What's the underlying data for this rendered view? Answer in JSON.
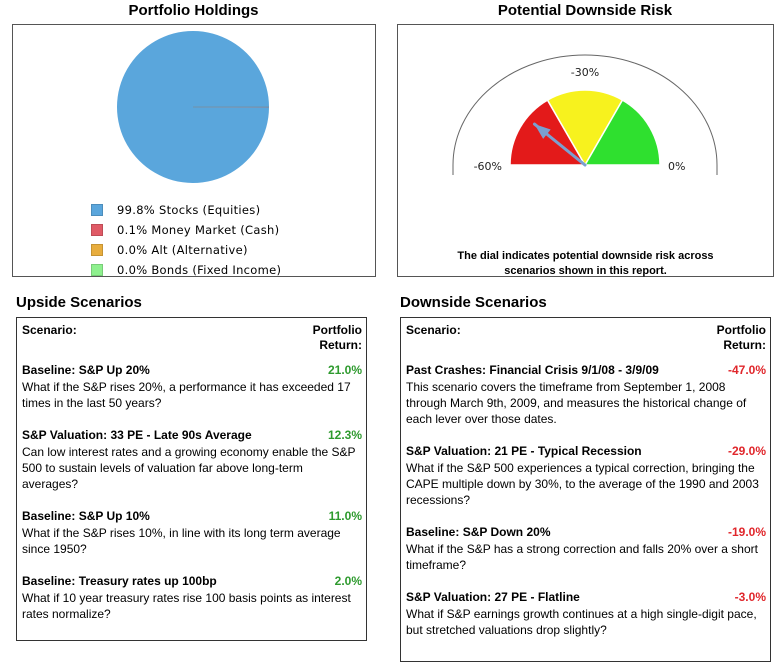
{
  "holdings": {
    "title": "Portfolio Holdings",
    "legend": [
      {
        "label": "99.8% Stocks (Equities)",
        "color": "#5aa6dc"
      },
      {
        "label": "0.1% Money Market (Cash)",
        "color": "#e05a66"
      },
      {
        "label": "0.0% Alt (Alternative)",
        "color": "#e8ad3d"
      },
      {
        "label": "0.0% Bonds (Fixed Income)",
        "color": "#8ef08e"
      }
    ]
  },
  "risk": {
    "title": "Potential Downside Risk",
    "note_line1": "The dial indicates potential downside risk across",
    "note_line2": "scenarios shown in this report."
  },
  "upside": {
    "title": "Upside Scenarios",
    "header_left": "Scenario:",
    "header_right_1": "Portfolio",
    "header_right_2": "Return:",
    "items": [
      {
        "name": "Baseline:  S&P Up 20%",
        "value": "21.0%",
        "desc": "What if the S&P rises 20%, a performance it has exceeded 17 times in the last 50 years?"
      },
      {
        "name": "S&P Valuation: 33 PE - Late 90s Average",
        "value": "12.3%",
        "desc": "Can low interest rates and a growing economy enable the S&P 500 to sustain levels of valuation far above long-term averages?"
      },
      {
        "name": "Baseline:  S&P Up 10%",
        "value": "11.0%",
        "desc": "What if the S&P rises 10%, in line with its long term average since 1950?"
      },
      {
        "name": "Baseline: Treasury rates up 100bp",
        "value": "2.0%",
        "desc": "What if 10 year treasury rates rise 100 basis points as interest rates normalize?"
      }
    ]
  },
  "downside": {
    "title": "Downside Scenarios",
    "header_left": "Scenario:",
    "header_right_1": "Portfolio",
    "header_right_2": "Return:",
    "items": [
      {
        "name": "Past Crashes: Financial Crisis 9/1/08 - 3/9/09",
        "value": "-47.0%",
        "desc": "This scenario covers the timeframe from September 1, 2008 through March 9th, 2009, and measures the historical change of each lever over those dates."
      },
      {
        "name": "S&P Valuation: 21 PE - Typical Recession",
        "value": "-29.0%",
        "desc": "What if the S&P 500 experiences a typical correction, bringing the CAPE multiple down by 30%, to the average of the 1990 and 2003 recessions?"
      },
      {
        "name": "Baseline: S&P Down 20%",
        "value": "-19.0%",
        "desc": "What if the S&P has a strong correction and falls 20% over a short timeframe?"
      },
      {
        "name": "S&P Valuation: 27 PE - Flatline",
        "value": "-3.0%",
        "desc": "What if S&P earnings growth continues at a high single-digit pace, but stretched valuations drop slightly?"
      }
    ]
  },
  "chart_data": [
    {
      "type": "pie",
      "title": "Portfolio Holdings",
      "categories": [
        "Stocks (Equities)",
        "Money Market (Cash)",
        "Alt (Alternative)",
        "Bonds (Fixed Income)"
      ],
      "values": [
        99.8,
        0.1,
        0.0,
        0.0
      ],
      "colors": [
        "#5aa6dc",
        "#e05a66",
        "#e8ad3d",
        "#8ef08e"
      ]
    },
    {
      "type": "gauge",
      "title": "Potential Downside Risk",
      "range": [
        -60,
        0
      ],
      "tick_labels": [
        "-60%",
        "-30%",
        "0%"
      ],
      "zones": [
        {
          "from": -60,
          "to": -40,
          "color": "#e31a1a"
        },
        {
          "from": -40,
          "to": -20,
          "color": "#f7f21e"
        },
        {
          "from": -20,
          "to": 0,
          "color": "#2fe02f"
        }
      ],
      "value": -47,
      "needle_color": "#7a9fd0"
    }
  ]
}
